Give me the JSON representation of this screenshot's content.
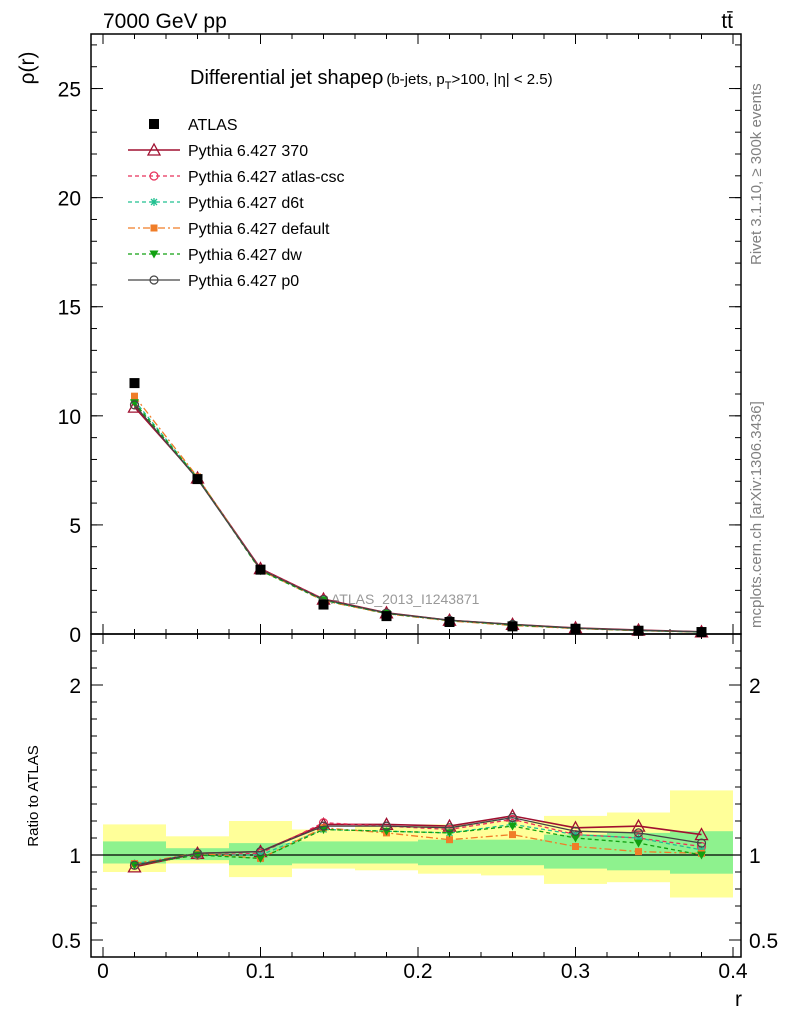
{
  "header": {
    "energy_label": "7000 GeV pp",
    "process_label": "tt̄"
  },
  "side_labels": {
    "rivet": "Rivet 3.1.10, ≥ 300k events",
    "mcplots": "mcplots.cern.ch [arXiv:1306.3436]"
  },
  "chart_data": [
    {
      "type": "line",
      "panel": "main",
      "title": "Differential jet shapeρ",
      "title_detail": "(b-jets, p",
      "title_detail_sub": "T",
      "title_detail_rest": ">100, |η| < 2.5)",
      "ylabel": "ρ(r)",
      "watermark": "ATLAS_2013_I1243871",
      "xlim": [
        0,
        0.4
      ],
      "ylim": [
        0,
        27.5
      ],
      "yticks": [
        0,
        5,
        10,
        15,
        20,
        25
      ],
      "x": [
        0.02,
        0.06,
        0.1,
        0.14,
        0.18,
        0.22,
        0.26,
        0.3,
        0.34,
        0.38
      ],
      "data": {
        "name": "ATLAS",
        "color": "#000000",
        "values": [
          11.5,
          7.1,
          2.95,
          1.35,
          0.82,
          0.55,
          0.35,
          0.24,
          0.15,
          0.09
        ]
      },
      "series": [
        {
          "name": "Pythia 6.427 370",
          "color": "#a01030",
          "dash": "none",
          "marker": "triangle-open",
          "values": [
            10.4,
            7.15,
            3.0,
            1.6,
            0.97,
            0.63,
            0.44,
            0.28,
            0.18,
            0.1
          ]
        },
        {
          "name": "Pythia 6.427 atlas-csc",
          "color": "#e8305a",
          "dash": "4,3",
          "marker": "circle-open",
          "values": [
            10.5,
            7.1,
            2.98,
            1.6,
            0.96,
            0.63,
            0.43,
            0.27,
            0.17,
            0.1
          ]
        },
        {
          "name": "Pythia 6.427 d6t",
          "color": "#20c090",
          "dash": "4,3",
          "marker": "star",
          "values": [
            10.7,
            7.15,
            2.95,
            1.55,
            0.94,
            0.62,
            0.42,
            0.27,
            0.16,
            0.09
          ]
        },
        {
          "name": "Pythia 6.427 default",
          "color": "#f07d28",
          "dash": "7,3,2,3",
          "marker": "square",
          "values": [
            10.9,
            7.2,
            2.92,
            1.53,
            0.93,
            0.6,
            0.39,
            0.25,
            0.15,
            0.09
          ]
        },
        {
          "name": "Pythia 6.427 dw",
          "color": "#11a011",
          "dash": "4,3",
          "marker": "triangle-down",
          "values": [
            10.6,
            7.15,
            2.9,
            1.55,
            0.94,
            0.62,
            0.41,
            0.26,
            0.16,
            0.09
          ]
        },
        {
          "name": "Pythia 6.427 p0",
          "color": "#444444",
          "dash": "none",
          "marker": "circle-open",
          "values": [
            10.5,
            7.1,
            2.96,
            1.58,
            0.96,
            0.63,
            0.44,
            0.27,
            0.17,
            0.1
          ]
        }
      ],
      "legend": "top-left"
    },
    {
      "type": "line",
      "panel": "ratio",
      "ylabel": "Ratio to ATLAS",
      "xlabel": "r",
      "xlim": [
        0,
        0.4
      ],
      "ylim": [
        0.4,
        2.3
      ],
      "yticks": [
        0.5,
        1,
        2
      ],
      "xticks": [
        0,
        0.1,
        0.2,
        0.3,
        0.4
      ],
      "xtick_labels": [
        "0",
        "0.1",
        "0.2",
        "0.3",
        "0.4"
      ],
      "bins": [
        [
          0.0,
          0.04
        ],
        [
          0.04,
          0.08
        ],
        [
          0.08,
          0.12
        ],
        [
          0.12,
          0.16
        ],
        [
          0.16,
          0.2
        ],
        [
          0.2,
          0.24
        ],
        [
          0.24,
          0.28
        ],
        [
          0.28,
          0.32
        ],
        [
          0.32,
          0.36
        ],
        [
          0.36,
          0.4
        ]
      ],
      "stat_band": {
        "color": "#8ef28e",
        "low": [
          0.95,
          0.97,
          0.94,
          0.95,
          0.95,
          0.94,
          0.94,
          0.92,
          0.91,
          0.89
        ],
        "high": [
          1.08,
          1.04,
          1.07,
          1.08,
          1.08,
          1.09,
          1.09,
          1.12,
          1.13,
          1.14
        ]
      },
      "syst_band": {
        "color": "#ffff99",
        "low": [
          0.9,
          0.95,
          0.87,
          0.92,
          0.91,
          0.89,
          0.88,
          0.83,
          0.84,
          0.75
        ],
        "high": [
          1.18,
          1.11,
          1.2,
          1.15,
          1.17,
          1.18,
          1.2,
          1.23,
          1.25,
          1.38
        ]
      },
      "x": [
        0.02,
        0.06,
        0.1,
        0.14,
        0.18,
        0.22,
        0.26,
        0.3,
        0.34,
        0.38
      ],
      "series": [
        {
          "name": "Pythia 6.427 370",
          "color": "#a01030",
          "dash": "none",
          "marker": "triangle-open",
          "values": [
            0.93,
            1.01,
            1.02,
            1.18,
            1.18,
            1.17,
            1.23,
            1.16,
            1.17,
            1.12
          ]
        },
        {
          "name": "Pythia 6.427 atlas-csc",
          "color": "#e8305a",
          "dash": "4,3",
          "marker": "circle-open",
          "values": [
            0.94,
            1.0,
            1.01,
            1.19,
            1.17,
            1.15,
            1.21,
            1.12,
            1.1,
            1.05
          ]
        },
        {
          "name": "Pythia 6.427 d6t",
          "color": "#20c090",
          "dash": "4,3",
          "marker": "star",
          "values": [
            0.95,
            1.0,
            1.0,
            1.15,
            1.14,
            1.13,
            1.18,
            1.12,
            1.1,
            1.03
          ]
        },
        {
          "name": "Pythia 6.427 default",
          "color": "#f07d28",
          "dash": "7,3,2,3",
          "marker": "square",
          "values": [
            0.95,
            1.01,
            0.98,
            1.16,
            1.13,
            1.09,
            1.12,
            1.05,
            1.02,
            1.01
          ]
        },
        {
          "name": "Pythia 6.427 dw",
          "color": "#11a011",
          "dash": "4,3",
          "marker": "triangle-down",
          "values": [
            0.94,
            1.0,
            0.98,
            1.15,
            1.14,
            1.13,
            1.17,
            1.1,
            1.07,
            1.0
          ]
        },
        {
          "name": "Pythia 6.427 p0",
          "color": "#444444",
          "dash": "none",
          "marker": "circle-open",
          "values": [
            0.94,
            1.01,
            1.02,
            1.17,
            1.17,
            1.16,
            1.22,
            1.14,
            1.13,
            1.07
          ]
        }
      ]
    }
  ]
}
